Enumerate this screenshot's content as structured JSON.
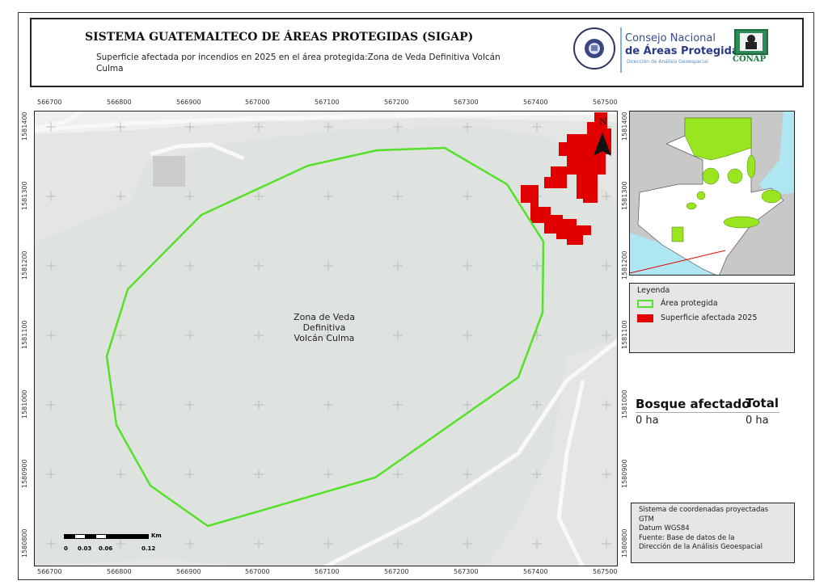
{
  "header": {
    "title": "SISTEMA GUATEMALTECO DE ÁREAS PROTEGIDAS  (SIGAP)",
    "subtitle": "Superficie afectada por incendios en 2025 en el área protegida:Zona de Veda Definitiva Volcán Culma",
    "logos": {
      "seal_text": "GOBIERNO DE LA REPÚBLICA · GUATEMALA",
      "conap_line1": "Consejo Nacional",
      "conap_line2": "de Áreas Protegidas",
      "conap_line3": "Dirección de Análisis Geoespacial",
      "conap_acronym": "CONAP"
    }
  },
  "map": {
    "x_ticks": [
      "566700",
      "566800",
      "566900",
      "567000",
      "567100",
      "567200",
      "567300",
      "567400",
      "567500"
    ],
    "y_ticks": [
      "1581400",
      "1581300",
      "1581200",
      "1581100",
      "1581000",
      "1580900",
      "1580800"
    ],
    "zone_label": [
      "Zona de Veda",
      "Definitiva",
      "Volcán Culma"
    ],
    "north_label": "N",
    "scale": {
      "labels": [
        "0",
        "0.03",
        "0.06",
        "0.12"
      ],
      "unit": "Km"
    },
    "colors": {
      "background": "#e3e6e3",
      "protected_area_outline": "#55e02a",
      "burned_area": "#e00000",
      "roads": "#f7f7f7"
    }
  },
  "legend": {
    "title": "Leyenda",
    "items": [
      {
        "label": "Área protegida",
        "color": "#55e02a",
        "style": "outline"
      },
      {
        "label": "Superficie afectada 2025",
        "color": "#e00000",
        "style": "fill"
      }
    ]
  },
  "stats": {
    "col1_header": "Bosque afectado",
    "col2_header": "Total",
    "col1_value": "0 ha",
    "col2_value": "0 ha"
  },
  "info": {
    "lines": [
      "Sistema de coordenadas proyectadas",
      "GTM",
      "Datum WGS84",
      "Fuente: Base de datos de la",
      "Dirección de la Análisis Geoespacial"
    ]
  }
}
